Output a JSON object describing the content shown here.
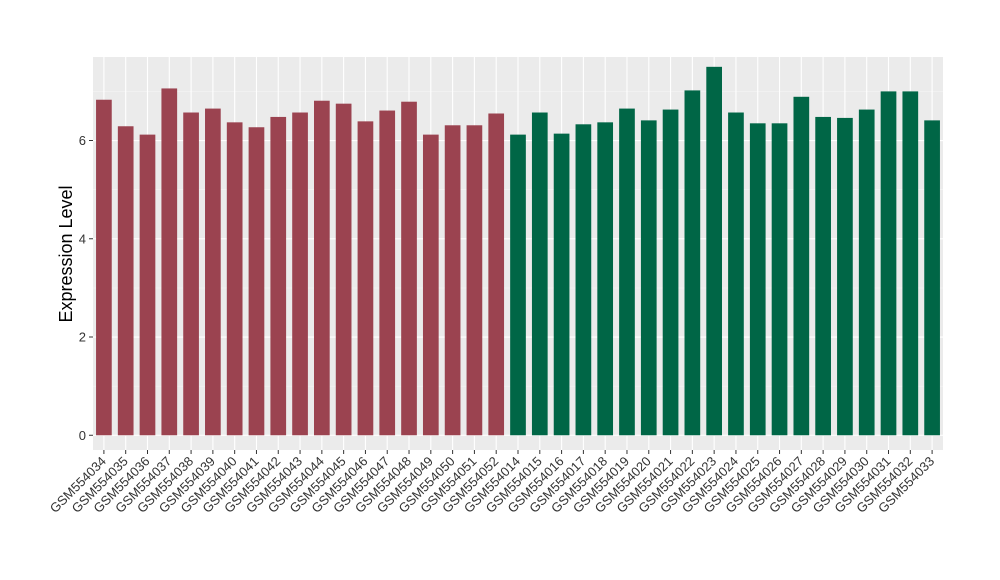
{
  "chart_data": {
    "type": "bar",
    "title": "",
    "xlabel": "",
    "ylabel": "Expression Level",
    "ylim": [
      -0.3,
      7.7
    ],
    "yticks": [
      0,
      2,
      4,
      6
    ],
    "grid": true,
    "panel_color": "#ebebeb",
    "categories": [
      "GSM554034",
      "GSM554035",
      "GSM554036",
      "GSM554037",
      "GSM554038",
      "GSM554039",
      "GSM554040",
      "GSM554041",
      "GSM554042",
      "GSM554043",
      "GSM554044",
      "GSM554045",
      "GSM554046",
      "GSM554047",
      "GSM554048",
      "GSM554049",
      "GSM554050",
      "GSM554051",
      "GSM554052",
      "GSM554014",
      "GSM554015",
      "GSM554016",
      "GSM554017",
      "GSM554018",
      "GSM554019",
      "GSM554020",
      "GSM554021",
      "GSM554022",
      "GSM554023",
      "GSM554024",
      "GSM554025",
      "GSM554026",
      "GSM554027",
      "GSM554028",
      "GSM554029",
      "GSM554030",
      "GSM554031",
      "GSM554032",
      "GSM554033"
    ],
    "values": [
      6.83,
      6.29,
      6.12,
      7.06,
      6.57,
      6.65,
      6.37,
      6.27,
      6.48,
      6.57,
      6.81,
      6.75,
      6.39,
      6.61,
      6.79,
      6.12,
      6.31,
      6.31,
      6.55,
      6.12,
      6.57,
      6.14,
      6.33,
      6.37,
      6.65,
      6.41,
      6.63,
      7.02,
      7.5,
      6.57,
      6.35,
      6.35,
      6.89,
      6.48,
      6.46,
      6.63,
      7.0,
      7.0,
      6.41
    ],
    "bar_colors": [
      "#9b4350",
      "#9b4350",
      "#9b4350",
      "#9b4350",
      "#9b4350",
      "#9b4350",
      "#9b4350",
      "#9b4350",
      "#9b4350",
      "#9b4350",
      "#9b4350",
      "#9b4350",
      "#9b4350",
      "#9b4350",
      "#9b4350",
      "#9b4350",
      "#9b4350",
      "#9b4350",
      "#9b4350",
      "#006646",
      "#006646",
      "#006646",
      "#006646",
      "#006646",
      "#006646",
      "#006646",
      "#006646",
      "#006646",
      "#006646",
      "#006646",
      "#006646",
      "#006646",
      "#006646",
      "#006646",
      "#006646",
      "#006646",
      "#006646",
      "#006646",
      "#006646"
    ]
  }
}
